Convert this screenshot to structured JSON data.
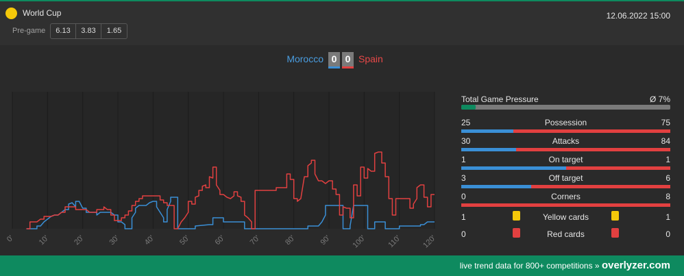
{
  "header": {
    "league": "World Cup",
    "datetime": "12.06.2022 15:00",
    "pregame_label": "Pre-game",
    "odds": [
      "6.13",
      "3.83",
      "1.65"
    ]
  },
  "match": {
    "home_team": "Morocco",
    "away_team": "Spain",
    "home_score": "0",
    "away_score": "0"
  },
  "stats": {
    "pressure": {
      "label": "Total Game Pressure",
      "avg": "Ø 7%",
      "value": 0.07
    },
    "rows": [
      {
        "label": "Possession",
        "home": "25",
        "away": "75"
      },
      {
        "label": "Attacks",
        "home": "30",
        "away": "84"
      },
      {
        "label": "On target",
        "home": "1",
        "away": "1"
      },
      {
        "label": "Off target",
        "home": "3",
        "away": "6"
      },
      {
        "label": "Corners",
        "home": "0",
        "away": "8"
      }
    ],
    "yellow_cards": {
      "label": "Yellow cards",
      "home": "1",
      "away": "1"
    },
    "red_cards": {
      "label": "Red cards",
      "home": "0",
      "away": "0"
    }
  },
  "footer": {
    "text": "live trend data for 800+ competitions »",
    "brand": "overlyzer.com"
  },
  "colors": {
    "home": "#3a8fd6",
    "away": "#e24040",
    "accent": "#0e8a5f",
    "yellow_card": "#f4c80a",
    "red_card": "#e24040"
  },
  "chart_data": {
    "type": "line",
    "x_ticks": [
      "0'",
      "10'",
      "20'",
      "30'",
      "40'",
      "50'",
      "60'",
      "70'",
      "80'",
      "90'",
      "100'",
      "110'",
      "120'"
    ],
    "xlim": [
      0,
      120
    ],
    "ylim": [
      0,
      100
    ],
    "grid": true,
    "series": [
      {
        "color": "#3a8fd6",
        "points": [
          [
            4,
            0
          ],
          [
            7,
            0
          ],
          [
            7,
            2
          ],
          [
            8,
            2
          ],
          [
            9,
            5
          ],
          [
            10,
            7
          ],
          [
            11,
            9
          ],
          [
            12,
            10
          ],
          [
            13,
            10
          ],
          [
            14,
            12
          ],
          [
            15,
            14
          ],
          [
            16,
            14
          ],
          [
            16,
            18
          ],
          [
            17,
            19
          ],
          [
            18,
            16
          ],
          [
            18,
            20
          ],
          [
            19,
            20
          ],
          [
            20,
            15
          ],
          [
            21,
            15
          ],
          [
            21,
            12
          ],
          [
            23,
            12
          ],
          [
            24,
            12
          ],
          [
            24,
            10
          ],
          [
            25,
            12
          ],
          [
            27,
            12
          ],
          [
            28,
            12
          ],
          [
            29,
            10
          ],
          [
            30,
            10
          ],
          [
            30,
            5
          ],
          [
            31,
            5
          ],
          [
            32,
            3
          ],
          [
            32,
            0
          ],
          [
            33,
            0
          ],
          [
            34,
            0
          ],
          [
            34,
            8
          ],
          [
            35,
            12
          ],
          [
            35,
            15
          ],
          [
            36,
            17
          ],
          [
            37,
            17
          ],
          [
            38,
            17
          ],
          [
            39,
            19
          ],
          [
            40,
            20
          ],
          [
            41,
            20
          ],
          [
            41,
            16
          ],
          [
            42,
            12
          ],
          [
            43,
            8
          ],
          [
            43,
            5
          ],
          [
            44,
            5
          ],
          [
            44,
            14
          ],
          [
            45,
            20
          ],
          [
            45,
            23
          ],
          [
            46,
            23
          ],
          [
            47,
            23
          ],
          [
            47,
            0
          ],
          [
            48,
            0
          ],
          [
            52,
            0
          ],
          [
            52,
            2
          ],
          [
            56,
            3
          ],
          [
            57,
            3
          ],
          [
            57,
            8
          ],
          [
            59,
            8
          ],
          [
            60,
            8
          ],
          [
            60,
            5
          ],
          [
            65,
            5
          ],
          [
            66,
            5
          ],
          [
            66,
            0
          ],
          [
            84,
            0
          ],
          [
            84,
            2
          ],
          [
            85,
            2
          ],
          [
            87,
            2
          ],
          [
            88,
            5
          ],
          [
            89,
            10
          ],
          [
            89,
            17
          ],
          [
            94,
            17
          ],
          [
            94,
            0
          ],
          [
            96,
            0
          ],
          [
            96,
            2
          ],
          [
            97,
            17
          ],
          [
            101,
            17
          ],
          [
            101,
            0
          ],
          [
            103,
            0
          ],
          [
            103,
            5
          ],
          [
            106,
            5
          ],
          [
            106,
            0
          ],
          [
            110,
            0
          ],
          [
            110,
            2
          ],
          [
            115,
            2
          ],
          [
            116,
            2
          ],
          [
            116,
            3
          ],
          [
            117,
            3
          ],
          [
            118,
            5
          ],
          [
            120,
            5
          ]
        ]
      },
      {
        "color": "#e24040",
        "points": [
          [
            4,
            0
          ],
          [
            5,
            0
          ],
          [
            5,
            5
          ],
          [
            6,
            5
          ],
          [
            7,
            5
          ],
          [
            8,
            7
          ],
          [
            9,
            7
          ],
          [
            9,
            9
          ],
          [
            11,
            9
          ],
          [
            12,
            10
          ],
          [
            13,
            10
          ],
          [
            14,
            12
          ],
          [
            15,
            12
          ],
          [
            15,
            16
          ],
          [
            17,
            16
          ],
          [
            18,
            16
          ],
          [
            18,
            14
          ],
          [
            20,
            14
          ],
          [
            21,
            14
          ],
          [
            22,
            12
          ],
          [
            24,
            12
          ],
          [
            24,
            14
          ],
          [
            26,
            14
          ],
          [
            26,
            16
          ],
          [
            27,
            14
          ],
          [
            28,
            14
          ],
          [
            28,
            10
          ],
          [
            29,
            10
          ],
          [
            29,
            6
          ],
          [
            30,
            6
          ],
          [
            31,
            6
          ],
          [
            31,
            8
          ],
          [
            32,
            8
          ],
          [
            32,
            10
          ],
          [
            33,
            10
          ],
          [
            33,
            13
          ],
          [
            34,
            13
          ],
          [
            34,
            17
          ],
          [
            35,
            17
          ],
          [
            35,
            20
          ],
          [
            36,
            20
          ],
          [
            36,
            22
          ],
          [
            37,
            22
          ],
          [
            37,
            24
          ],
          [
            41,
            24
          ],
          [
            42,
            24
          ],
          [
            42,
            21
          ],
          [
            43,
            21
          ],
          [
            43,
            19
          ],
          [
            44,
            19
          ],
          [
            44,
            17
          ],
          [
            45,
            17
          ],
          [
            46,
            17
          ],
          [
            46,
            0
          ],
          [
            47,
            0
          ],
          [
            48,
            5
          ],
          [
            49,
            8
          ],
          [
            50,
            12
          ],
          [
            50,
            20
          ],
          [
            51,
            20
          ],
          [
            51,
            18
          ],
          [
            52,
            18
          ],
          [
            52,
            23
          ],
          [
            53,
            24
          ],
          [
            53,
            28
          ],
          [
            54,
            28
          ],
          [
            54,
            31
          ],
          [
            55,
            32
          ],
          [
            55,
            30
          ],
          [
            56,
            30
          ],
          [
            56,
            38
          ],
          [
            57,
            37
          ],
          [
            57,
            45
          ],
          [
            58,
            45
          ],
          [
            58,
            32
          ],
          [
            59,
            28
          ],
          [
            59,
            25
          ],
          [
            60,
            25
          ],
          [
            61,
            23
          ],
          [
            62,
            22
          ],
          [
            63,
            24
          ],
          [
            63,
            27
          ],
          [
            64,
            27
          ],
          [
            64,
            24
          ],
          [
            65,
            23
          ],
          [
            65,
            20
          ],
          [
            66,
            20
          ],
          [
            66,
            10
          ],
          [
            67,
            8
          ],
          [
            68,
            5
          ],
          [
            68,
            0
          ],
          [
            69,
            0
          ],
          [
            69,
            28
          ],
          [
            75,
            28
          ],
          [
            75,
            30
          ],
          [
            77,
            30
          ],
          [
            78,
            30
          ],
          [
            78,
            40
          ],
          [
            79,
            40
          ],
          [
            79,
            36
          ],
          [
            80,
            36
          ],
          [
            80,
            22
          ],
          [
            81,
            22
          ],
          [
            81,
            20
          ],
          [
            82,
            22
          ],
          [
            83,
            38
          ],
          [
            84,
            38
          ],
          [
            84,
            46
          ],
          [
            85,
            48
          ],
          [
            85,
            50
          ],
          [
            86,
            50
          ],
          [
            86,
            40
          ],
          [
            87,
            35
          ],
          [
            88,
            35
          ],
          [
            89,
            33
          ],
          [
            90,
            35
          ],
          [
            91,
            35
          ],
          [
            91,
            29
          ],
          [
            92,
            29
          ],
          [
            92,
            25
          ],
          [
            93,
            25
          ],
          [
            93,
            10
          ],
          [
            94,
            10
          ],
          [
            94,
            16
          ],
          [
            95,
            15
          ],
          [
            96,
            15
          ],
          [
            96,
            8
          ],
          [
            97,
            8
          ],
          [
            97,
            32
          ],
          [
            98,
            32
          ],
          [
            98,
            24
          ],
          [
            99,
            24
          ],
          [
            99,
            45
          ],
          [
            100,
            45
          ],
          [
            100,
            37
          ],
          [
            101,
            37
          ],
          [
            101,
            44
          ],
          [
            102,
            42
          ],
          [
            103,
            42
          ],
          [
            103,
            55
          ],
          [
            104,
            56
          ],
          [
            105,
            56
          ],
          [
            105,
            48
          ],
          [
            106,
            48
          ],
          [
            106,
            38
          ],
          [
            107,
            38
          ],
          [
            107,
            22
          ],
          [
            108,
            22
          ],
          [
            108,
            10
          ],
          [
            109,
            10
          ],
          [
            109,
            22
          ],
          [
            112,
            22
          ],
          [
            113,
            22
          ],
          [
            113,
            15
          ],
          [
            114,
            15
          ],
          [
            114,
            18
          ],
          [
            115,
            22
          ],
          [
            115,
            30
          ],
          [
            116,
            32
          ],
          [
            117,
            32
          ],
          [
            117,
            23
          ],
          [
            118,
            23
          ],
          [
            118,
            16
          ],
          [
            119,
            16
          ],
          [
            119,
            25
          ],
          [
            120,
            25
          ]
        ]
      }
    ]
  }
}
